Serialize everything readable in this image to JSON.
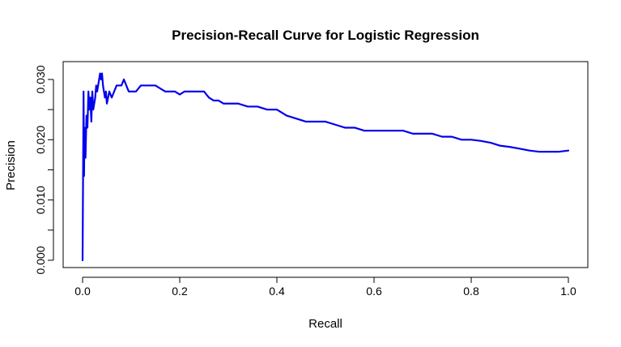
{
  "chart_data": {
    "type": "line",
    "title": "Precision-Recall Curve for Logistic Regression",
    "xlabel": "Recall",
    "ylabel": "Precision",
    "xlim": [
      0.0,
      1.0
    ],
    "ylim": [
      0.0,
      0.03
    ],
    "x_ticks": [
      0.0,
      0.2,
      0.4,
      0.6,
      0.8,
      1.0
    ],
    "x_tick_labels": [
      "0.0",
      "0.2",
      "0.4",
      "0.6",
      "0.8",
      "1.0"
    ],
    "y_ticks": [
      0.0,
      0.01,
      0.02,
      0.03
    ],
    "y_tick_labels": [
      "0.000",
      "0.010",
      "0.020",
      "0.030"
    ],
    "grid": false,
    "legend": "none",
    "series": [
      {
        "color": "#0000ee",
        "x": [
          0.0,
          0.002,
          0.003,
          0.004,
          0.006,
          0.008,
          0.01,
          0.012,
          0.014,
          0.016,
          0.018,
          0.02,
          0.022,
          0.024,
          0.026,
          0.028,
          0.03,
          0.032,
          0.034,
          0.036,
          0.038,
          0.04,
          0.042,
          0.044,
          0.046,
          0.048,
          0.05,
          0.055,
          0.06,
          0.065,
          0.07,
          0.075,
          0.08,
          0.085,
          0.09,
          0.095,
          0.1,
          0.11,
          0.12,
          0.13,
          0.14,
          0.15,
          0.16,
          0.17,
          0.18,
          0.19,
          0.2,
          0.21,
          0.22,
          0.23,
          0.24,
          0.25,
          0.26,
          0.27,
          0.28,
          0.29,
          0.3,
          0.32,
          0.34,
          0.36,
          0.38,
          0.4,
          0.42,
          0.44,
          0.46,
          0.48,
          0.5,
          0.52,
          0.54,
          0.56,
          0.58,
          0.6,
          0.62,
          0.64,
          0.66,
          0.68,
          0.7,
          0.72,
          0.74,
          0.76,
          0.78,
          0.8,
          0.82,
          0.84,
          0.86,
          0.88,
          0.9,
          0.92,
          0.94,
          0.96,
          0.98,
          1.0
        ],
        "y": [
          0.0,
          0.028,
          0.014,
          0.022,
          0.017,
          0.024,
          0.022,
          0.028,
          0.025,
          0.027,
          0.023,
          0.028,
          0.025,
          0.026,
          0.027,
          0.029,
          0.028,
          0.029,
          0.03,
          0.031,
          0.03,
          0.031,
          0.029,
          0.028,
          0.027,
          0.028,
          0.026,
          0.028,
          0.027,
          0.028,
          0.029,
          0.029,
          0.029,
          0.03,
          0.029,
          0.028,
          0.028,
          0.028,
          0.029,
          0.029,
          0.029,
          0.029,
          0.0285,
          0.028,
          0.028,
          0.028,
          0.0275,
          0.028,
          0.028,
          0.028,
          0.028,
          0.028,
          0.027,
          0.0265,
          0.0265,
          0.026,
          0.026,
          0.026,
          0.0255,
          0.0255,
          0.025,
          0.025,
          0.024,
          0.0235,
          0.023,
          0.023,
          0.023,
          0.0225,
          0.022,
          0.022,
          0.0215,
          0.0215,
          0.0215,
          0.0215,
          0.0215,
          0.021,
          0.021,
          0.021,
          0.0205,
          0.0205,
          0.02,
          0.02,
          0.0198,
          0.0195,
          0.019,
          0.0188,
          0.0185,
          0.0182,
          0.018,
          0.018,
          0.018,
          0.0182
        ]
      }
    ]
  }
}
